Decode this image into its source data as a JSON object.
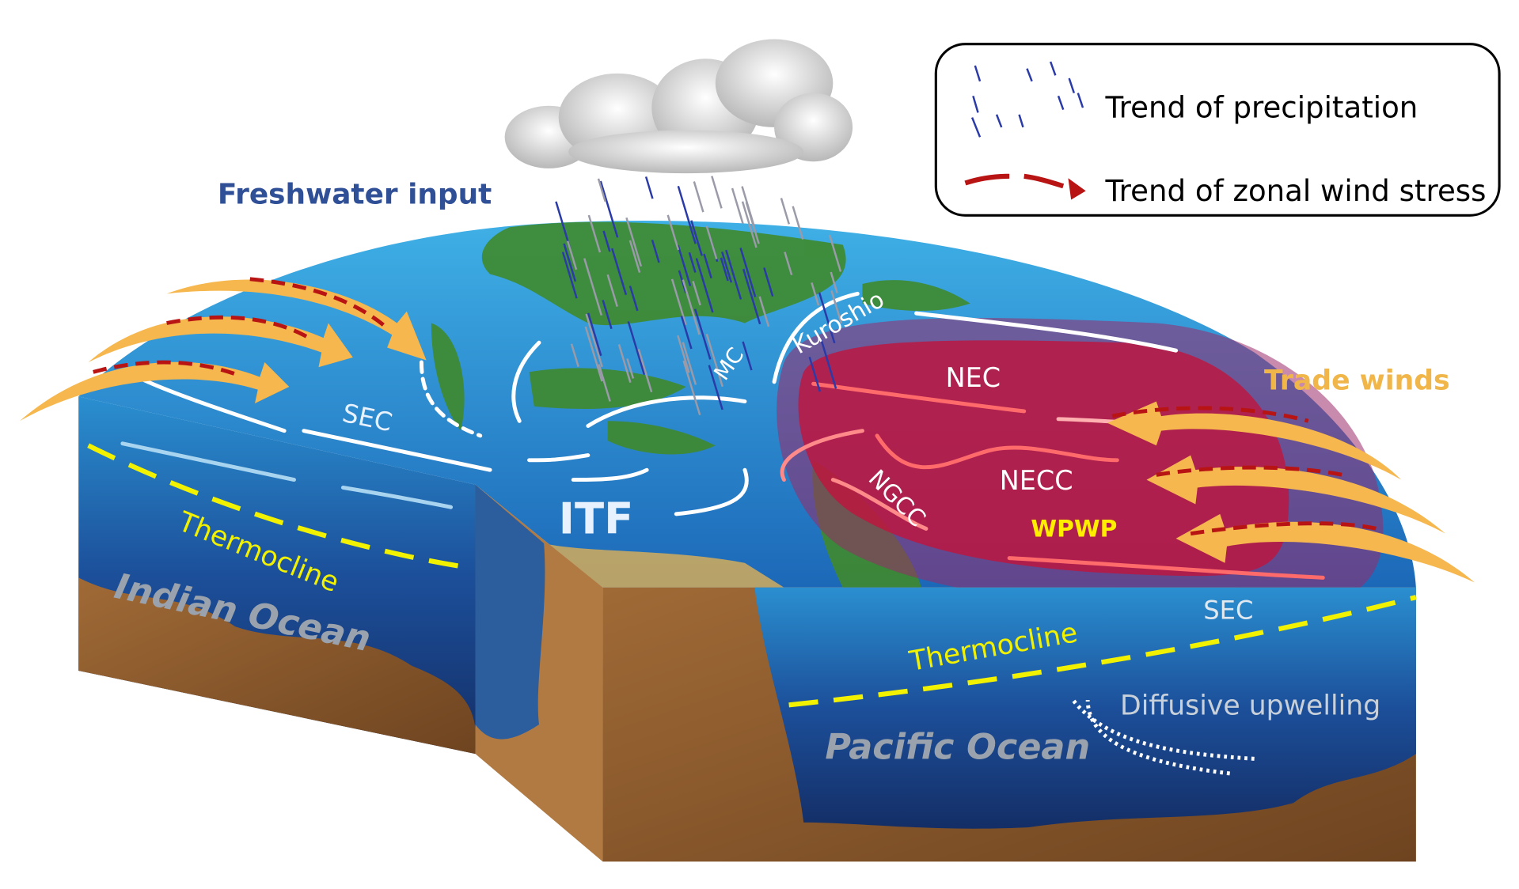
{
  "legend": {
    "precipitation_label": "Trend of precipitation",
    "wind_stress_label": "Trend of zonal wind stress"
  },
  "labels": {
    "freshwater_input": "Freshwater input",
    "trade_winds": "Trade winds",
    "sec_indian": "SEC",
    "sec_pacific": "SEC",
    "itf": "ITF",
    "mc": "MC",
    "kuroshio": "Kuroshio",
    "nec": "NEC",
    "necc": "NECC",
    "ngcc": "NGCC",
    "wpwp": "WPWP",
    "thermocline_indian": "Thermocline",
    "thermocline_pacific": "Thermocline",
    "indian_ocean": "Indian Ocean",
    "pacific_ocean": "Pacific Ocean",
    "diffusive_upwelling": "Diffusive upwelling"
  },
  "colors": {
    "trade_wind_arrow": "#f5b74e",
    "wind_stress_trend": "#b81414",
    "precipitation": "#2a3aa8",
    "wpwp_region": "#c0143c",
    "thermocline": "#f2f200",
    "ocean_surface": "#2f8fd0",
    "ocean_deep": "#123a7a",
    "seafloor": "#8a5a2e",
    "freshwater_text": "#2f4f96",
    "trade_winds_text": "#f0b64a"
  }
}
